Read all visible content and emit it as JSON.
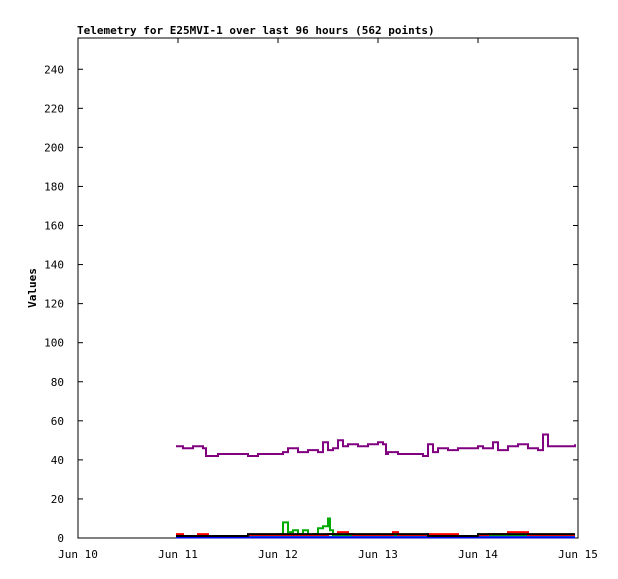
{
  "chart_data": {
    "type": "line",
    "title": "Telemetry for E25MVI-1 over last 96 hours (562 points)",
    "xlabel": "",
    "ylabel": "Values",
    "x_ticks": [
      "Jun 10",
      "Jun 11",
      "Jun 12",
      "Jun 13",
      "Jun 14",
      "Jun 15"
    ],
    "xlim": [
      0,
      5
    ],
    "y_ticks": [
      0,
      20,
      40,
      60,
      80,
      100,
      120,
      140,
      160,
      180,
      200,
      220,
      240
    ],
    "ylim": [
      0,
      256
    ],
    "grid": false,
    "legend": "none",
    "series": [
      {
        "color": "#800080",
        "x": [
          0.98,
          1.05,
          1.15,
          1.25,
          1.28,
          1.4,
          1.55,
          1.7,
          1.8,
          1.95,
          2.05,
          2.1,
          2.2,
          2.3,
          2.4,
          2.45,
          2.5,
          2.55,
          2.6,
          2.65,
          2.7,
          2.8,
          2.9,
          3.0,
          3.05,
          3.08,
          3.1,
          3.2,
          3.3,
          3.45,
          3.5,
          3.55,
          3.6,
          3.7,
          3.8,
          3.9,
          4.0,
          4.05,
          4.15,
          4.2,
          4.3,
          4.4,
          4.5,
          4.6,
          4.65,
          4.7,
          4.8,
          4.9,
          4.97
        ],
        "values": [
          47,
          46,
          47,
          46,
          42,
          43,
          43,
          42,
          43,
          43,
          44,
          46,
          44,
          45,
          44,
          49,
          45,
          46,
          50,
          47,
          48,
          47,
          48,
          49,
          48,
          43,
          44,
          43,
          43,
          42,
          48,
          44,
          46,
          45,
          46,
          46,
          47,
          46,
          49,
          45,
          47,
          48,
          46,
          45,
          53,
          47,
          47,
          47,
          48
        ]
      },
      {
        "color": "#00aa00",
        "x": [
          1.0,
          1.8,
          1.95,
          2.03,
          2.05,
          2.1,
          2.15,
          2.2,
          2.25,
          2.3,
          2.35,
          2.4,
          2.45,
          2.5,
          2.52,
          2.55,
          2.6,
          3.0,
          4.97
        ],
        "values": [
          1,
          1,
          1,
          2,
          8,
          3,
          4,
          2,
          4,
          1,
          2,
          5,
          6,
          10,
          4,
          1,
          1,
          1,
          1
        ]
      },
      {
        "color": "#ff0000",
        "x": [
          0.98,
          1.05,
          1.2,
          1.3,
          1.6,
          2.0,
          2.2,
          2.5,
          2.6,
          2.7,
          2.75,
          3.1,
          3.15,
          3.2,
          3.3,
          3.5,
          3.8,
          4.1,
          4.2,
          4.3,
          4.45,
          4.5,
          4.7,
          4.97
        ],
        "values": [
          2,
          1,
          2,
          1,
          1,
          1,
          1,
          2,
          3,
          2,
          1,
          1,
          3,
          1,
          1,
          2,
          1,
          2,
          2,
          3,
          3,
          1,
          1,
          1
        ]
      },
      {
        "color": "#00aaaa",
        "x": [
          0.98,
          2.0,
          3.0,
          4.97
        ],
        "values": [
          0.5,
          0.5,
          0.5,
          0.5
        ]
      },
      {
        "color": "#0000ff",
        "x": [
          0.98,
          2.0,
          3.0,
          4.97
        ],
        "values": [
          0.3,
          0.3,
          0.3,
          0.3
        ]
      },
      {
        "color": "#000000",
        "x": [
          0.98,
          1.65,
          1.7,
          2.0,
          3.0,
          3.5,
          4.0,
          4.97
        ],
        "values": [
          1,
          1,
          2,
          2,
          2,
          1,
          2,
          2
        ]
      }
    ]
  }
}
